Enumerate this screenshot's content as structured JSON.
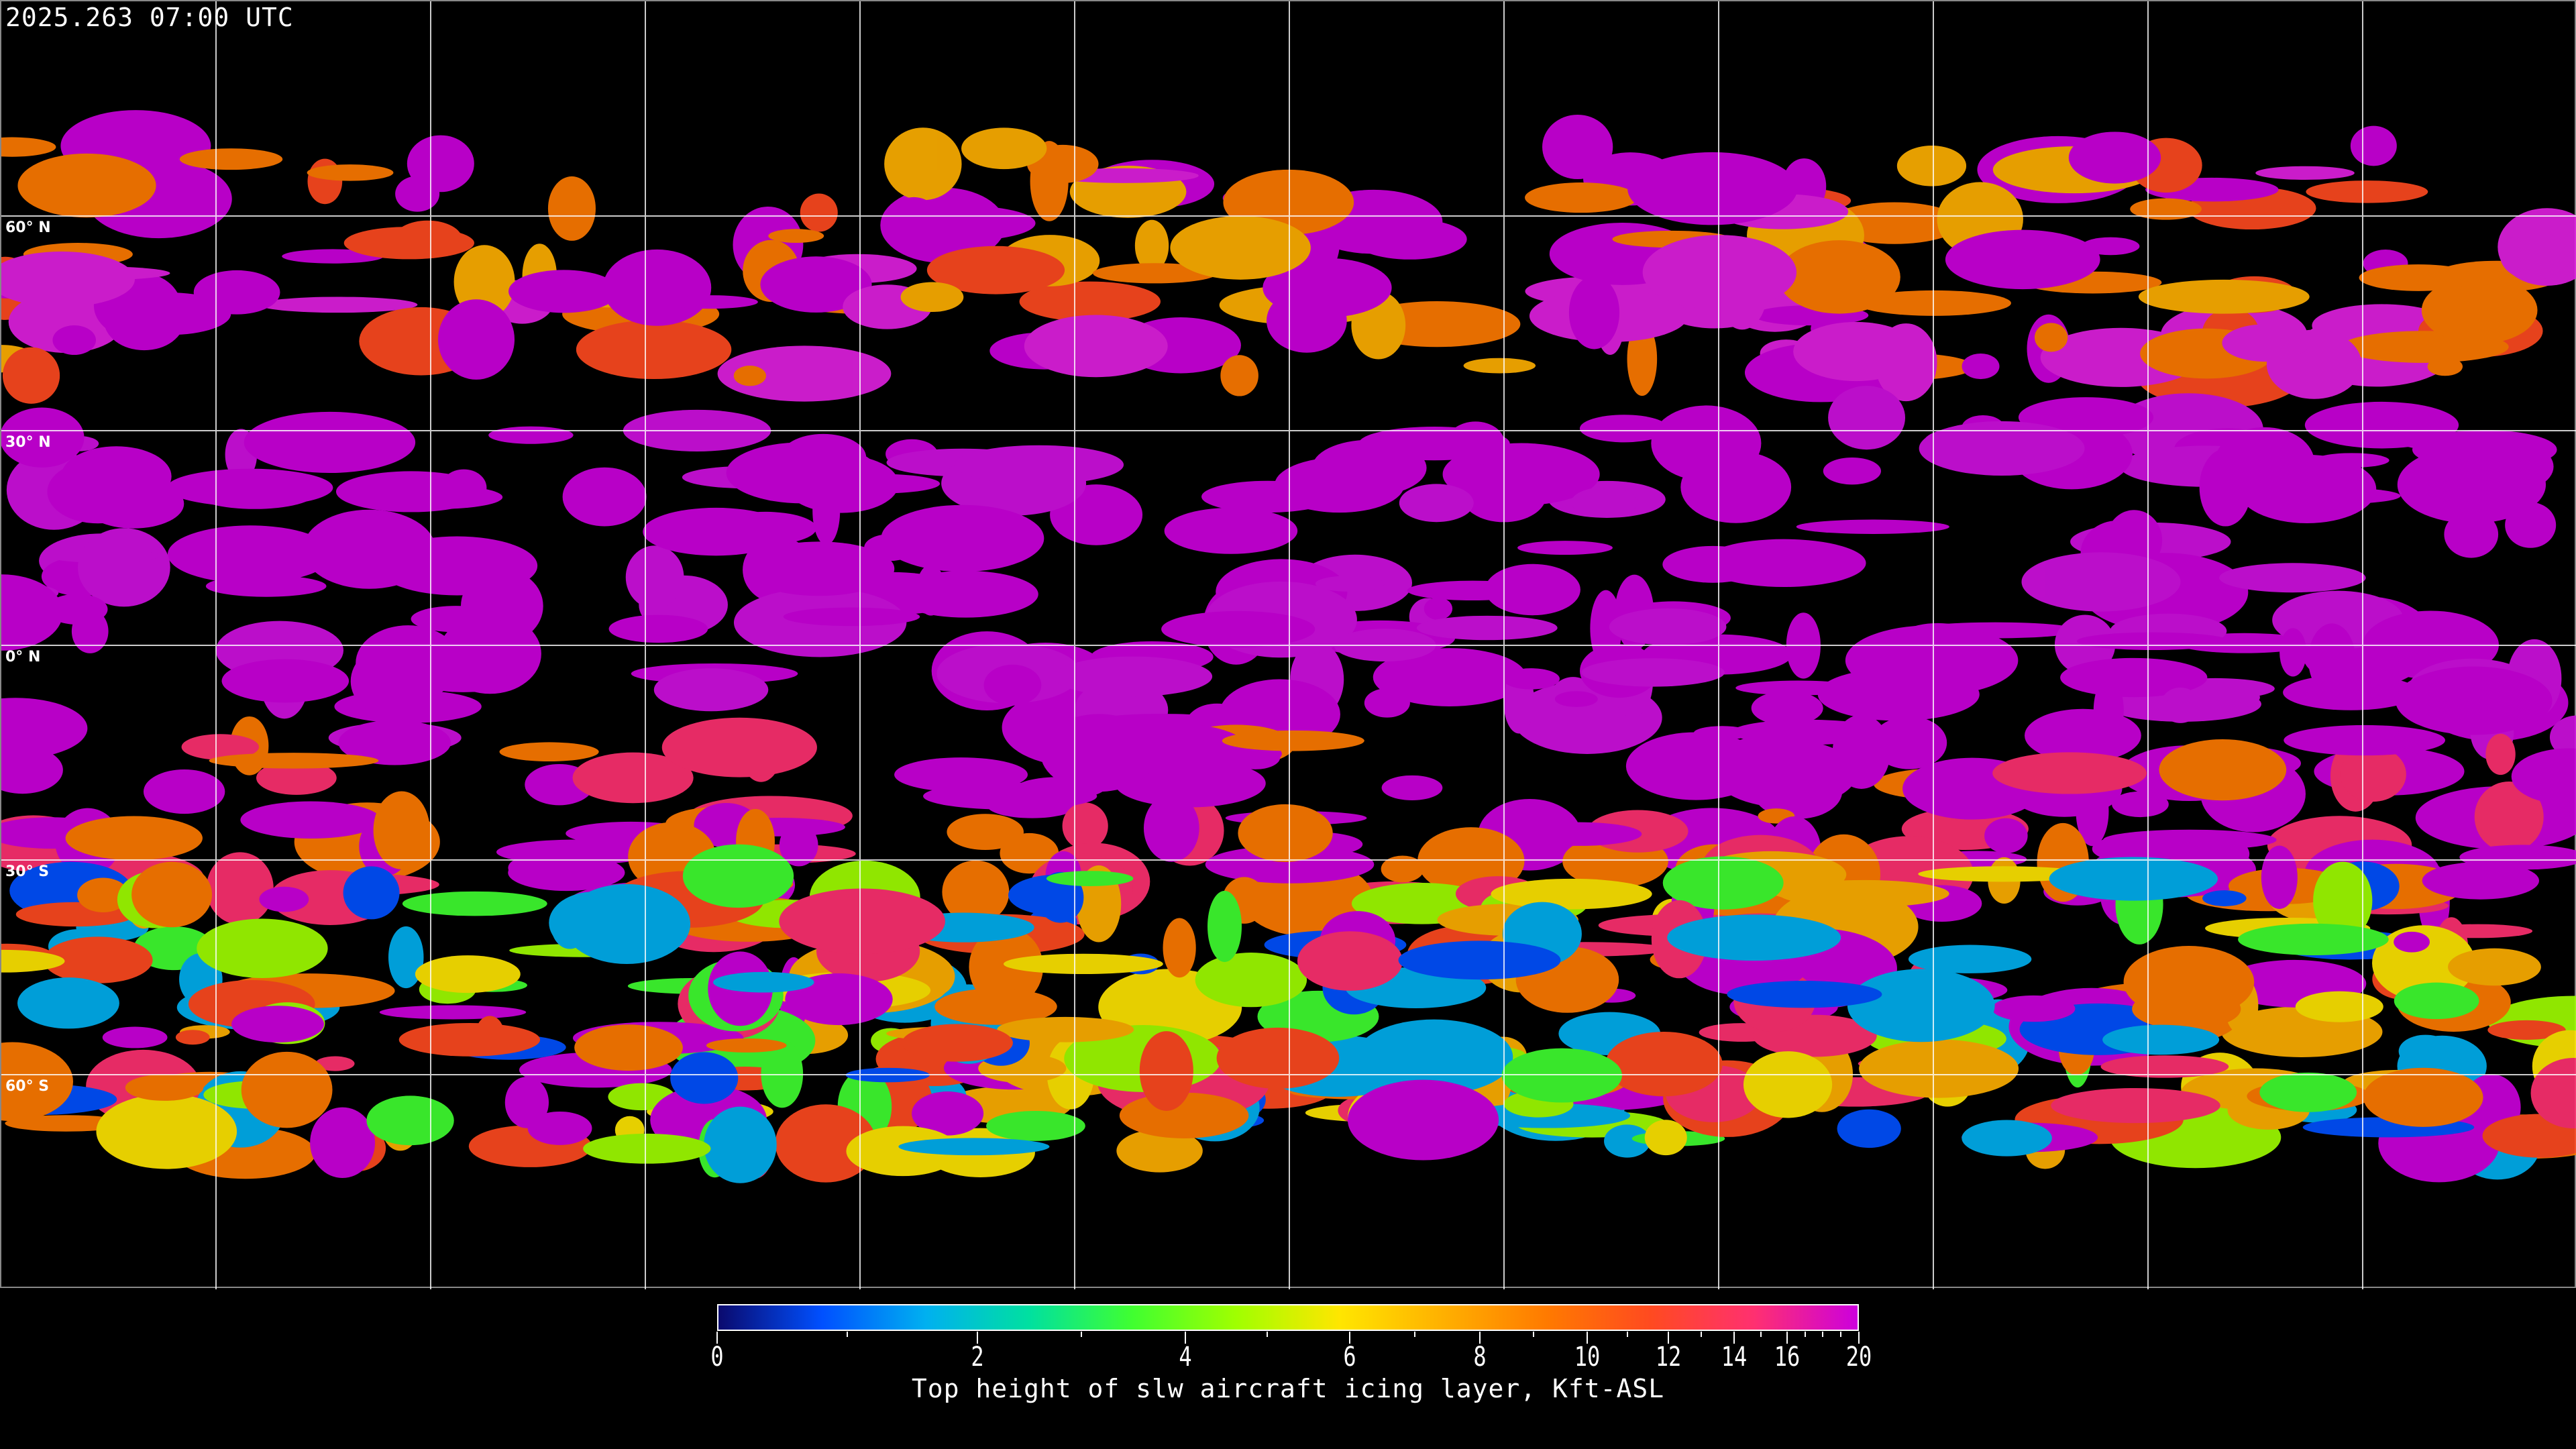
{
  "timestamp": "2025.263 07:00 UTC",
  "latitude_labels": [
    "60° N",
    "30° N",
    "0° N",
    "30° S",
    "60° S"
  ],
  "colorbar": {
    "title": "Top height of slw aircraft icing layer, Kft-ASL",
    "min": 0,
    "max": 20,
    "major_ticks": [
      "0",
      "2",
      "4",
      "6",
      "8",
      "10",
      "12",
      "14",
      "16",
      "20"
    ],
    "minor_ticks": [
      1,
      3,
      5,
      7,
      9,
      11,
      13,
      15,
      17,
      18,
      19
    ],
    "colors": [
      "#0a0a6e",
      "#0050ff",
      "#00b0f0",
      "#00e0a0",
      "#40ff30",
      "#a0ff00",
      "#ffe600",
      "#ffb000",
      "#ff7a00",
      "#ff4a20",
      "#ff3070",
      "#cc00dd"
    ]
  },
  "gridlines": {
    "color": "#ffffff",
    "spacing_degrees": 30
  },
  "coastline_color": "#ffffff"
}
